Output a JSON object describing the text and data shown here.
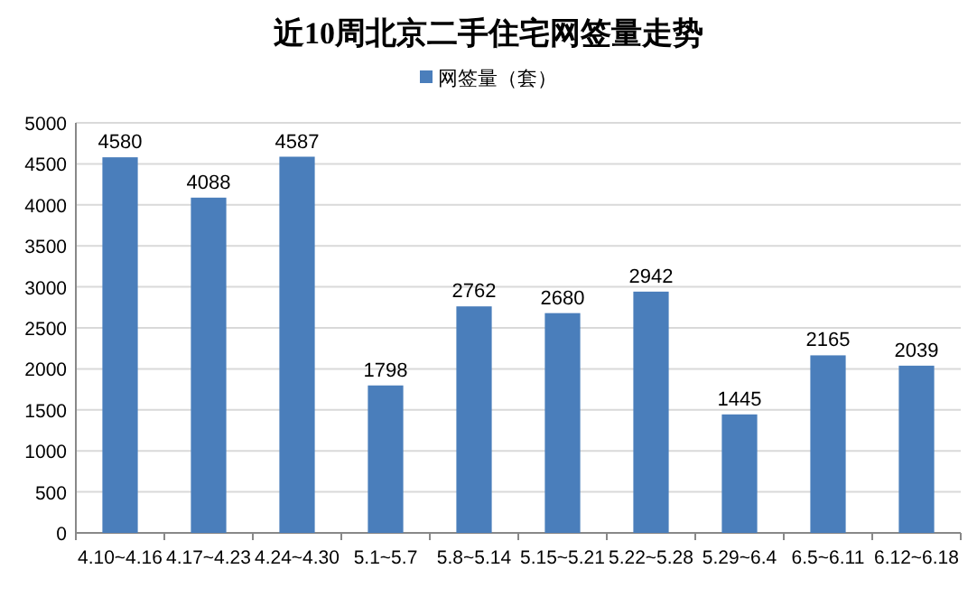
{
  "chart_data": {
    "type": "bar",
    "title": "近10周北京二手住宅网签量走势",
    "categories": [
      "4.10~4.16",
      "4.17~4.23",
      "4.24~4.30",
      "5.1~5.7",
      "5.8~5.14",
      "5.15~5.21",
      "5.22~5.28",
      "5.29~6.4",
      "6.5~6.11",
      "6.12~6.18"
    ],
    "series": [
      {
        "name": "网签量（套）",
        "color": "#4a7ebb",
        "values": [
          4580,
          4088,
          4587,
          1798,
          2762,
          2680,
          2942,
          1445,
          2165,
          2039
        ]
      }
    ],
    "ylim": [
      0,
      5000
    ],
    "yticks": [
      0,
      500,
      1000,
      1500,
      2000,
      2500,
      3000,
      3500,
      4000,
      4500,
      5000
    ],
    "grid": "y",
    "legend": "top",
    "data_labels": true
  }
}
